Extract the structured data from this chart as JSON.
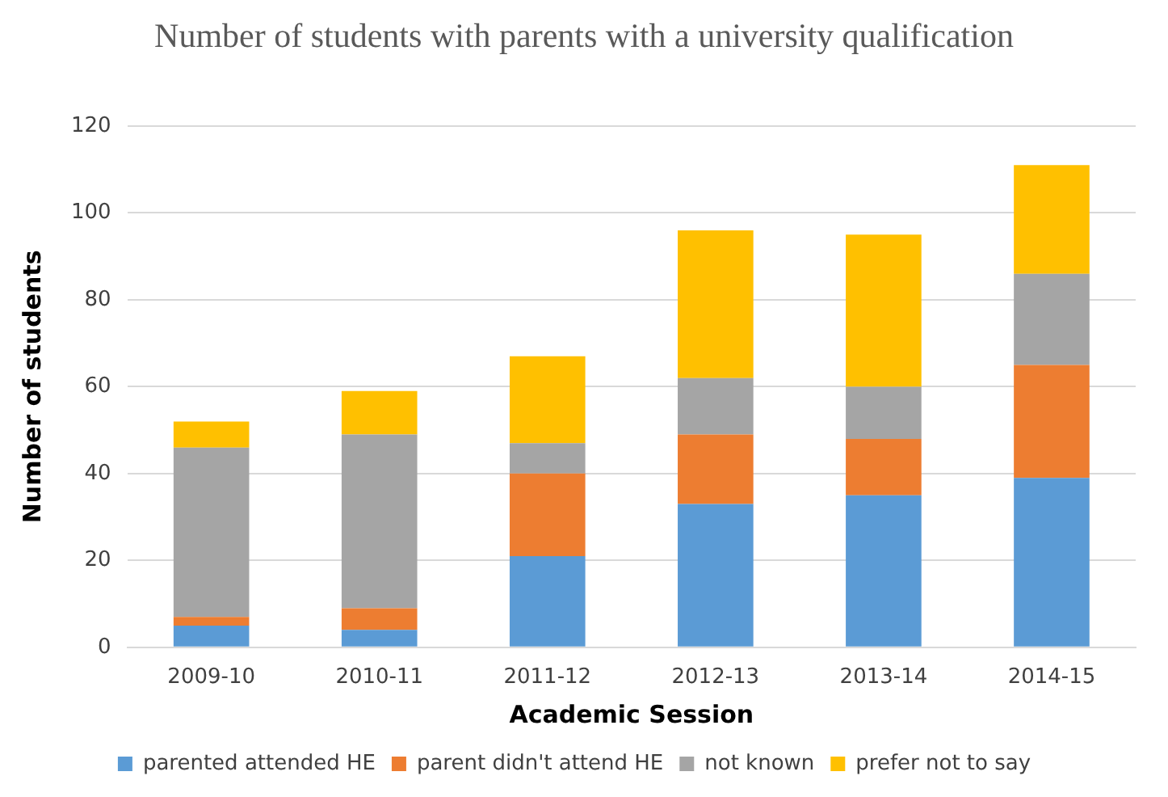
{
  "chart_data": {
    "type": "bar",
    "title": "Number of students with parents with a university qualification",
    "xlabel": "Academic Session",
    "ylabel": "Number of students",
    "categories": [
      "2009-10",
      "2010-11",
      "2011-12",
      "2012-13",
      "2013-14",
      "2014-15"
    ],
    "series": [
      {
        "name": "parented attended HE",
        "color": "#5b9bd5",
        "values": [
          5,
          4,
          21,
          33,
          35,
          39
        ]
      },
      {
        "name": "parent didn't attend HE",
        "color": "#ed7d31",
        "values": [
          2,
          5,
          19,
          16,
          13,
          26
        ]
      },
      {
        "name": "not known",
        "color": "#a5a5a5",
        "values": [
          39,
          40,
          7,
          13,
          12,
          21
        ]
      },
      {
        "name": "prefer not to say",
        "color": "#ffc000",
        "values": [
          6,
          10,
          20,
          34,
          35,
          25
        ]
      }
    ],
    "stacked": true,
    "ylim": [
      0,
      120
    ],
    "yticks": [
      0,
      20,
      40,
      60,
      80,
      100,
      120
    ],
    "grid": "y",
    "legend": "bottom"
  }
}
